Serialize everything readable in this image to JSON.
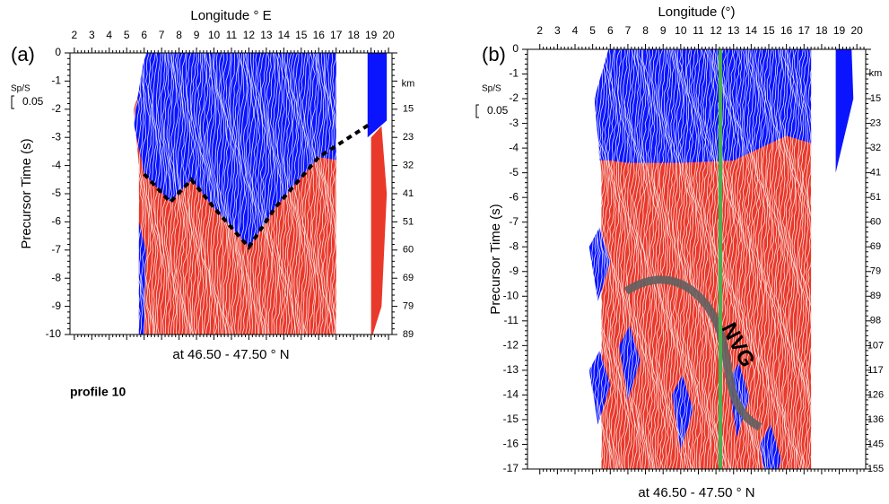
{
  "chart_data": [
    {
      "type": "section",
      "panel": "(a)",
      "xlabel": "Longitude ° E",
      "ylabel": "Precursor Time (s)",
      "subtitle": "at 46.50 - 47.50 ° N",
      "scale_label": "Sp/S",
      "scale_value": 0.05,
      "note": "profile 10",
      "xlim": [
        1.75,
        20.2
      ],
      "xticks": [
        2,
        3,
        4,
        5,
        6,
        7,
        8,
        9,
        10,
        11,
        12,
        13,
        14,
        15,
        16,
        17,
        18,
        19,
        20
      ],
      "ylim": [
        0,
        -10
      ],
      "yticks": [
        0,
        -1,
        -2,
        -3,
        -4,
        -5,
        -6,
        -7,
        -8,
        -9,
        -10
      ],
      "y2label": "km",
      "y2ticks": [
        {
          "value": -2,
          "label": "15"
        },
        {
          "value": -3,
          "label": "23"
        },
        {
          "value": -4,
          "label": "32"
        },
        {
          "value": -5,
          "label": "41"
        },
        {
          "value": -6,
          "label": "51"
        },
        {
          "value": -7,
          "label": "60"
        },
        {
          "value": -8,
          "label": "69"
        },
        {
          "value": -9,
          "label": "79"
        },
        {
          "value": -10,
          "label": "89"
        }
      ]
    },
    {
      "type": "section",
      "panel": "(b)",
      "xlabel": "Longitude (°)",
      "ylabel": "Precursor Time (s)",
      "subtitle": "at 46.50 - 47.50 ° N",
      "scale_label": "Sp/S",
      "scale_value": 0.05,
      "annotation": "NVG",
      "xlim": [
        1.3,
        20.5
      ],
      "xticks": [
        2,
        3,
        4,
        5,
        6,
        7,
        8,
        9,
        10,
        11,
        12,
        13,
        14,
        15,
        16,
        17,
        18,
        19,
        20
      ],
      "ylim": [
        0,
        -17
      ],
      "yticks": [
        0,
        -1,
        -2,
        -3,
        -4,
        -5,
        -6,
        -7,
        -8,
        -9,
        -10,
        -11,
        -12,
        -13,
        -14,
        -15,
        -16,
        -17
      ],
      "y2label": "km",
      "y2ticks": [
        {
          "value": -2,
          "label": "15"
        },
        {
          "value": -3,
          "label": "23"
        },
        {
          "value": -4,
          "label": "32"
        },
        {
          "value": -5,
          "label": "41"
        },
        {
          "value": -6,
          "label": "51"
        },
        {
          "value": -7,
          "label": "60"
        },
        {
          "value": -8,
          "label": "69"
        },
        {
          "value": -9,
          "label": "79"
        },
        {
          "value": -10,
          "label": "89"
        },
        {
          "value": -11,
          "label": "98"
        },
        {
          "value": -12,
          "label": "107"
        },
        {
          "value": -13,
          "label": "117"
        },
        {
          "value": -14,
          "label": "126"
        },
        {
          "value": -15,
          "label": "136"
        },
        {
          "value": -16,
          "label": "145"
        },
        {
          "value": -17,
          "label": "155"
        }
      ]
    }
  ]
}
